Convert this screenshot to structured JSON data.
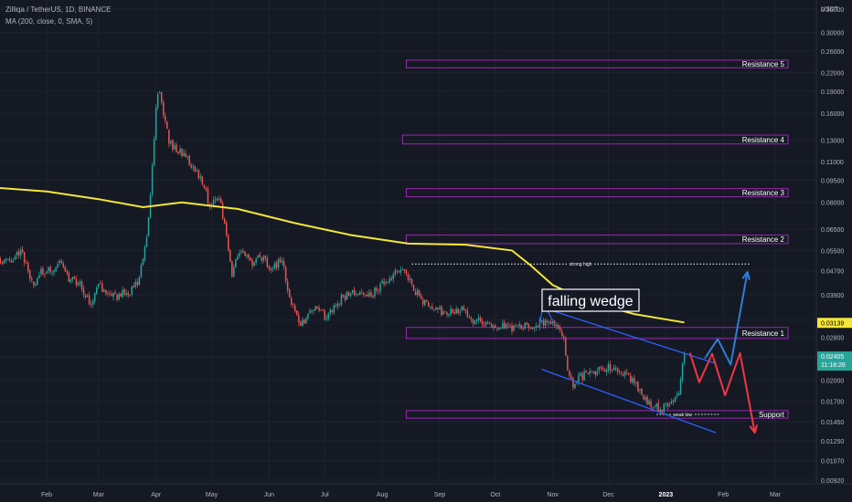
{
  "header": {
    "symbol_line": "Zilliqa / TetherUS, 1D, BINANCE",
    "indicator_line": "MA (200, close, 0, SMA, 5)"
  },
  "axis": {
    "currency": "USDT"
  },
  "colors": {
    "up": "#26a69a",
    "down": "#ef5350",
    "ma": "#f5e63a",
    "zone": "#9c27b0",
    "wedge": "#2962ff",
    "arrow_up": "#2e7fd6",
    "arrow_down": "#f23645",
    "bg": "#151924",
    "grid": "#1e222d"
  },
  "annotations": {
    "zones": [
      {
        "label": "Resistance 5",
        "low": 0.228,
        "high": 0.242,
        "from": "2022-08-14"
      },
      {
        "label": "Resistance 4",
        "low": 0.126,
        "high": 0.135,
        "from": "2022-08-12"
      },
      {
        "label": "Resistance 3",
        "low": 0.0835,
        "high": 0.089,
        "from": "2022-08-14"
      },
      {
        "label": "Resistance 2",
        "low": 0.058,
        "high": 0.062,
        "from": "2022-08-14"
      },
      {
        "label": "Resistance 1",
        "low": 0.0277,
        "high": 0.0302,
        "from": "2022-08-14"
      },
      {
        "label": "Support",
        "low": 0.0149,
        "high": 0.0158,
        "from": "2022-08-14"
      }
    ],
    "strong_high": {
      "label": "strong high",
      "price": 0.0495,
      "from": "2022-08-17",
      "to": "2023-02-15"
    },
    "weak_low": {
      "label": "weak low",
      "price": 0.01535,
      "from": "2022-12-27",
      "to": "2023-01-30"
    },
    "pattern_label": "falling wedge",
    "ma_last_label": "0.03139",
    "last_price_label": "0.02405",
    "countdown_label": "11:18:26"
  },
  "chart_data": {
    "type": "candlestick",
    "scale": "log",
    "ylim": [
      0.0087,
      0.38
    ],
    "y_ticks": [
      "0.36000",
      "0.30000",
      "0.26000",
      "0.22000",
      "0.19000",
      "0.16000",
      "0.13000",
      "0.11000",
      "0.09500",
      "0.08000",
      "0.06500",
      "0.05500",
      "0.04700",
      "0.03900",
      "0.03200",
      "0.02800",
      "0.02400",
      "0.02000",
      "0.01700",
      "0.01450",
      "0.01250",
      "0.01070",
      "0.00920"
    ],
    "x_ticks": [
      {
        "label": "Feb",
        "date": "2022-02-01"
      },
      {
        "label": "Mar",
        "date": "2022-03-01"
      },
      {
        "label": "Apr",
        "date": "2022-04-01"
      },
      {
        "label": "May",
        "date": "2022-05-01"
      },
      {
        "label": "Jun",
        "date": "2022-06-01"
      },
      {
        "label": "Jul",
        "date": "2022-07-01"
      },
      {
        "label": "Aug",
        "date": "2022-08-01"
      },
      {
        "label": "Sep",
        "date": "2022-09-01"
      },
      {
        "label": "Oct",
        "date": "2022-10-01"
      },
      {
        "label": "Nov",
        "date": "2022-11-01"
      },
      {
        "label": "Dec",
        "date": "2022-12-01"
      },
      {
        "label": "2023",
        "date": "2023-01-01"
      },
      {
        "label": "Feb",
        "date": "2023-02-01"
      },
      {
        "label": "Mar",
        "date": "2023-03-01"
      }
    ],
    "price_path": [
      [
        "2022-01-06",
        0.052
      ],
      [
        "2022-01-12",
        0.05
      ],
      [
        "2022-01-18",
        0.056
      ],
      [
        "2022-01-24",
        0.042
      ],
      [
        "2022-01-29",
        0.046
      ],
      [
        "2022-02-04",
        0.047
      ],
      [
        "2022-02-09",
        0.051
      ],
      [
        "2022-02-13",
        0.044
      ],
      [
        "2022-02-20",
        0.042
      ],
      [
        "2022-02-24",
        0.036
      ],
      [
        "2022-03-01",
        0.042
      ],
      [
        "2022-03-07",
        0.038
      ],
      [
        "2022-03-12",
        0.039
      ],
      [
        "2022-03-18",
        0.04
      ],
      [
        "2022-03-23",
        0.044
      ],
      [
        "2022-03-27",
        0.06
      ],
      [
        "2022-03-29",
        0.085
      ],
      [
        "2022-04-01",
        0.17
      ],
      [
        "2022-04-03",
        0.195
      ],
      [
        "2022-04-05",
        0.16
      ],
      [
        "2022-04-08",
        0.13
      ],
      [
        "2022-04-12",
        0.12
      ],
      [
        "2022-04-17",
        0.115
      ],
      [
        "2022-04-21",
        0.105
      ],
      [
        "2022-04-26",
        0.095
      ],
      [
        "2022-04-30",
        0.078
      ],
      [
        "2022-05-05",
        0.085
      ],
      [
        "2022-05-10",
        0.056
      ],
      [
        "2022-05-12",
        0.046
      ],
      [
        "2022-05-16",
        0.055
      ],
      [
        "2022-05-22",
        0.05
      ],
      [
        "2022-05-28",
        0.052
      ],
      [
        "2022-06-03",
        0.048
      ],
      [
        "2022-06-08",
        0.051
      ],
      [
        "2022-06-13",
        0.036
      ],
      [
        "2022-06-18",
        0.031
      ],
      [
        "2022-06-25",
        0.035
      ],
      [
        "2022-07-02",
        0.033
      ],
      [
        "2022-07-10",
        0.038
      ],
      [
        "2022-07-17",
        0.04
      ],
      [
        "2022-07-24",
        0.038
      ],
      [
        "2022-08-01",
        0.042
      ],
      [
        "2022-08-07",
        0.045
      ],
      [
        "2022-08-13",
        0.048
      ],
      [
        "2022-08-19",
        0.04
      ],
      [
        "2022-08-26",
        0.035
      ],
      [
        "2022-09-04",
        0.034
      ],
      [
        "2022-09-12",
        0.035
      ],
      [
        "2022-09-20",
        0.032
      ],
      [
        "2022-09-30",
        0.0305
      ],
      [
        "2022-10-12",
        0.03
      ],
      [
        "2022-10-25",
        0.031
      ],
      [
        "2022-10-31",
        0.032
      ],
      [
        "2022-11-03",
        0.0305
      ],
      [
        "2022-11-07",
        0.028
      ],
      [
        "2022-11-09",
        0.021
      ],
      [
        "2022-11-12",
        0.0195
      ],
      [
        "2022-11-18",
        0.021
      ],
      [
        "2022-11-25",
        0.0215
      ],
      [
        "2022-12-02",
        0.022
      ],
      [
        "2022-12-08",
        0.0215
      ],
      [
        "2022-12-15",
        0.02
      ],
      [
        "2022-12-20",
        0.0175
      ],
      [
        "2022-12-25",
        0.0165
      ],
      [
        "2022-12-30",
        0.016
      ],
      [
        "2023-01-04",
        0.0172
      ],
      [
        "2023-01-08",
        0.0185
      ],
      [
        "2023-01-10",
        0.0225
      ],
      [
        "2023-01-11",
        0.024
      ]
    ],
    "ma_200": [
      [
        "2022-01-01",
        0.09
      ],
      [
        "2022-02-01",
        0.087
      ],
      [
        "2022-03-01",
        0.082
      ],
      [
        "2022-03-25",
        0.077
      ],
      [
        "2022-04-15",
        0.08
      ],
      [
        "2022-05-15",
        0.076
      ],
      [
        "2022-06-15",
        0.068
      ],
      [
        "2022-07-15",
        0.062
      ],
      [
        "2022-08-15",
        0.058
      ],
      [
        "2022-09-15",
        0.0575
      ],
      [
        "2022-10-10",
        0.055
      ],
      [
        "2022-10-20",
        0.049
      ],
      [
        "2022-11-01",
        0.042
      ],
      [
        "2022-11-20",
        0.037
      ],
      [
        "2022-12-15",
        0.0335
      ],
      [
        "2023-01-11",
        0.0314
      ]
    ],
    "wedge_upper": [
      [
        "2022-10-28",
        0.035
      ],
      [
        "2023-01-28",
        0.0228
      ]
    ],
    "wedge_lower": [
      [
        "2022-10-26",
        0.0218
      ],
      [
        "2023-01-28",
        0.0133
      ]
    ],
    "scenario_up": [
      [
        "2023-01-22",
        0.0237
      ],
      [
        "2023-01-29",
        0.0276
      ],
      [
        "2023-02-05",
        0.0226
      ],
      [
        "2023-02-14",
        0.0465
      ]
    ],
    "scenario_down": [
      [
        "2023-01-14",
        0.0248
      ],
      [
        "2023-01-19",
        0.0197
      ],
      [
        "2023-01-26",
        0.0246
      ],
      [
        "2023-02-02",
        0.0178
      ],
      [
        "2023-02-10",
        0.0247
      ],
      [
        "2023-02-18",
        0.0133
      ]
    ],
    "wedge_peak_marker": [
      [
        "2022-10-25",
        0.031
      ],
      [
        "2022-10-27",
        0.0365
      ],
      [
        "2022-11-02",
        0.031
      ]
    ]
  }
}
